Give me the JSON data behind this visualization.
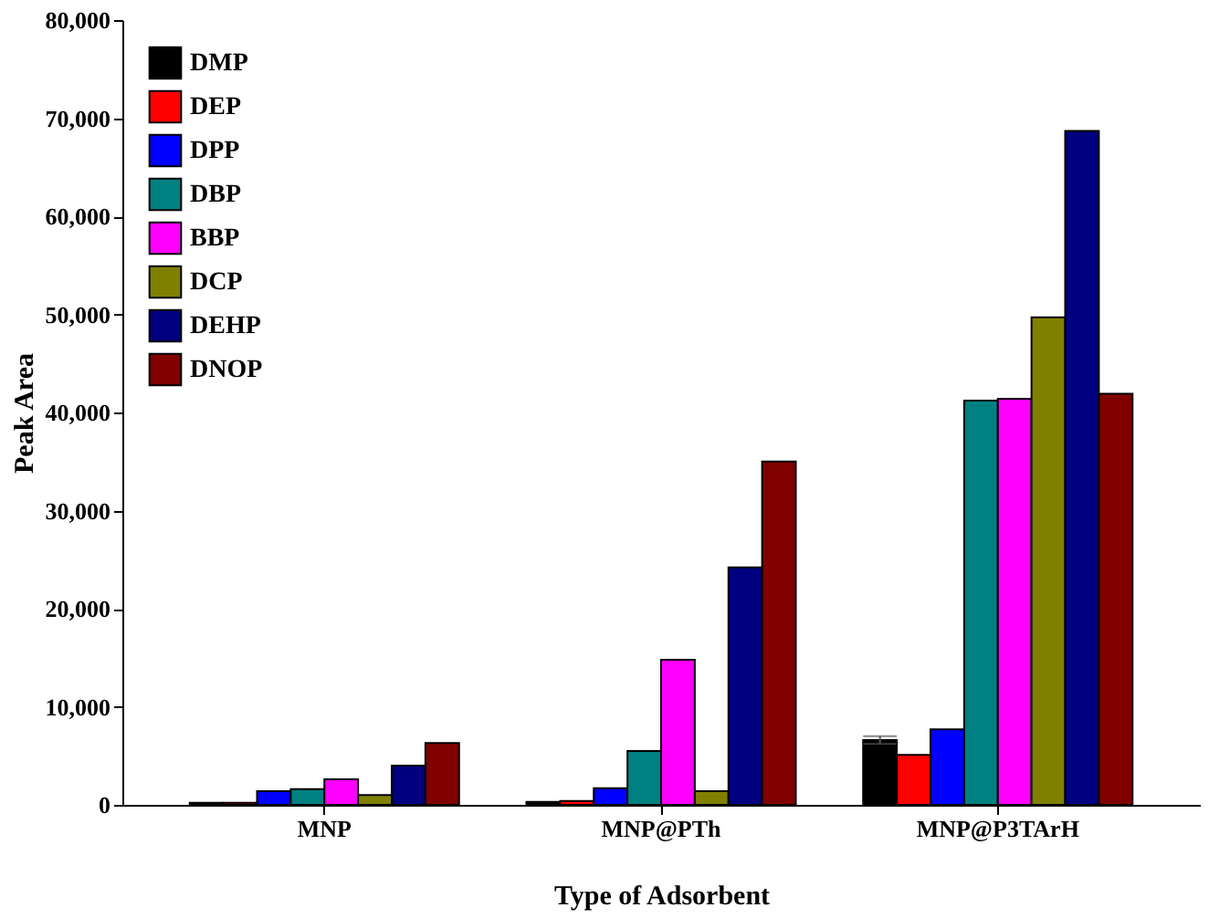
{
  "chart_data": {
    "type": "bar",
    "xlabel": "Type of Adsorbent",
    "ylabel": "Peak Area",
    "categories": [
      "MNP",
      "MNP@PTh",
      "MNP@P3TArH"
    ],
    "series": [
      {
        "name": "DMP",
        "color": "#000000",
        "values": [
          200,
          300,
          6600
        ],
        "errors": [
          null,
          null,
          400
        ]
      },
      {
        "name": "DEP",
        "color": "#ff0000",
        "values": [
          200,
          400,
          5100
        ]
      },
      {
        "name": "DPP",
        "color": "#0000ff",
        "values": [
          1400,
          1700,
          7700
        ]
      },
      {
        "name": "DBP",
        "color": "#008080",
        "values": [
          1600,
          5500,
          41200
        ]
      },
      {
        "name": "BBP",
        "color": "#ff00ff",
        "values": [
          2600,
          14800,
          41400
        ]
      },
      {
        "name": "DCP",
        "color": "#808000",
        "values": [
          1000,
          1400,
          49700
        ]
      },
      {
        "name": "DEHP",
        "color": "#000080",
        "values": [
          4000,
          24200,
          68700
        ]
      },
      {
        "name": "DNOP",
        "color": "#800000",
        "values": [
          6300,
          35000,
          41900
        ]
      }
    ],
    "ylim": [
      0,
      80000
    ],
    "yticks": [
      {
        "value": 0,
        "label": "0"
      },
      {
        "value": 10000,
        "label": "10,000"
      },
      {
        "value": 20000,
        "label": "20,000"
      },
      {
        "value": 30000,
        "label": "30,000"
      },
      {
        "value": 40000,
        "label": "40,000"
      },
      {
        "value": 50000,
        "label": "50,000"
      },
      {
        "value": 60000,
        "label": "60,000"
      },
      {
        "value": 70000,
        "label": "70,000"
      },
      {
        "value": 80000,
        "label": "80,000"
      }
    ],
    "grid": false,
    "legend": "top left"
  }
}
